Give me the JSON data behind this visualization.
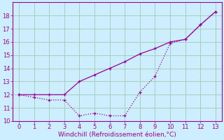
{
  "line1_x": [
    0,
    1,
    2,
    3,
    4,
    5,
    6,
    7,
    8,
    9,
    10,
    11,
    12,
    13
  ],
  "line1_y": [
    12.0,
    12.0,
    12.0,
    12.0,
    13.0,
    13.5,
    14.0,
    14.5,
    15.1,
    15.5,
    16.0,
    16.2,
    17.3,
    18.3
  ],
  "line2_x": [
    0,
    1,
    2,
    3,
    4,
    5,
    6,
    7,
    8,
    9,
    10,
    11,
    12,
    13
  ],
  "line2_y": [
    12.0,
    11.8,
    11.6,
    11.6,
    10.4,
    10.6,
    10.4,
    10.4,
    12.2,
    13.4,
    15.9,
    16.2,
    17.3,
    18.3
  ],
  "line_color": "#990099",
  "bg_color": "#cceeff",
  "grid_color": "#aaccbb",
  "xlabel": "Windchill (Refroidissement éolien,°C)",
  "xlim": [
    -0.4,
    13.4
  ],
  "ylim": [
    10,
    19
  ],
  "yticks": [
    10,
    11,
    12,
    13,
    14,
    15,
    16,
    17,
    18
  ],
  "xticks": [
    0,
    1,
    2,
    3,
    4,
    5,
    6,
    7,
    8,
    9,
    10,
    11,
    12,
    13
  ],
  "tick_labelsize": 6,
  "xlabel_fontsize": 6.5
}
